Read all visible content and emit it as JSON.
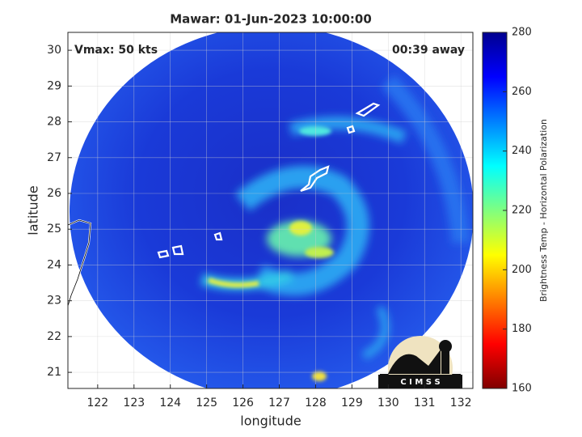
{
  "title": "Mawar: 01-Jun-2023 10:00:00",
  "annotations": {
    "left": "Vmax: 50 kts",
    "right": "00:39 away"
  },
  "map": {
    "x_label": "longitude",
    "y_label": "latitude",
    "xlim": [
      121.18,
      132.33
    ],
    "ylim": [
      20.55,
      30.5
    ],
    "xticks": [
      122,
      123,
      124,
      125,
      126,
      127,
      128,
      129,
      130,
      131,
      132
    ],
    "yticks": [
      21,
      22,
      23,
      24,
      25,
      26,
      27,
      28,
      29,
      30
    ],
    "grid": true
  },
  "colorbar": {
    "label": "Brightness Temp - Horizontal Polarization",
    "lim": [
      160,
      280
    ],
    "ticks": [
      160,
      180,
      200,
      220,
      240,
      260,
      280
    ]
  },
  "logo": "C I M S S"
}
